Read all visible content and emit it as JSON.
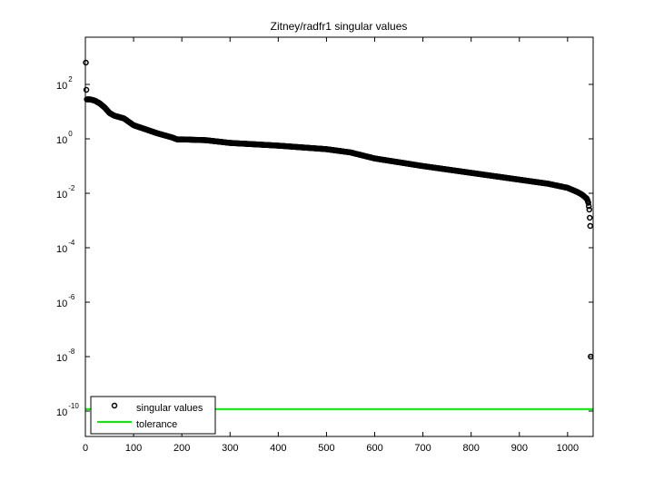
{
  "chart_data": {
    "type": "scatter",
    "title": "Zitney/radfr1 singular values",
    "xlabel": "",
    "ylabel": "",
    "yscale": "log",
    "xlim": [
      0,
      1053
    ],
    "ylim_exp": [
      -11,
      3.7
    ],
    "x_ticks": [
      0,
      100,
      200,
      300,
      400,
      500,
      600,
      700,
      800,
      900,
      1000
    ],
    "y_ticks": [
      {
        "base": "10",
        "exp": "2",
        "value": 2
      },
      {
        "base": "10",
        "exp": "0",
        "value": 0
      },
      {
        "base": "10",
        "exp": "-2",
        "value": -2
      },
      {
        "base": "10",
        "exp": "-4",
        "value": -4
      },
      {
        "base": "10",
        "exp": "-6",
        "value": -6
      },
      {
        "base": "10",
        "exp": "-8",
        "value": -8
      },
      {
        "base": "10",
        "exp": "-10",
        "value": -10
      }
    ],
    "grid": false,
    "legend_position": "lower left",
    "legend": [
      {
        "label": "singular values",
        "marker": "circle",
        "color": "#000000"
      },
      {
        "label": "tolerance",
        "marker": "line",
        "color": "#00ee00"
      }
    ],
    "series": [
      {
        "name": "singular values",
        "description": "log10 of singular value vs. index (approximate, read from plot)",
        "x": [
          1,
          2,
          3,
          10,
          20,
          30,
          40,
          50,
          60,
          80,
          100,
          120,
          150,
          180,
          190,
          200,
          250,
          300,
          400,
          500,
          550,
          600,
          700,
          800,
          900,
          960,
          1000,
          1020,
          1030,
          1040,
          1043,
          1045,
          1046,
          1047,
          1048
        ],
        "log10": [
          2.8,
          1.8,
          1.45,
          1.45,
          1.4,
          1.3,
          1.15,
          0.95,
          0.85,
          0.75,
          0.5,
          0.38,
          0.2,
          0.05,
          -0.02,
          -0.02,
          -0.05,
          -0.15,
          -0.25,
          -0.38,
          -0.5,
          -0.72,
          -1.0,
          -1.25,
          -1.5,
          -1.65,
          -1.8,
          -1.95,
          -2.05,
          -2.2,
          -2.35,
          -2.6,
          -2.9,
          -3.2,
          -8.0
        ]
      },
      {
        "name": "tolerance",
        "value": 1.2e-10,
        "log10": -9.93
      }
    ],
    "colors": {
      "points": "#000000",
      "tolerance": "#00ee00",
      "axes": "#000000",
      "background": "#ffffff"
    }
  }
}
